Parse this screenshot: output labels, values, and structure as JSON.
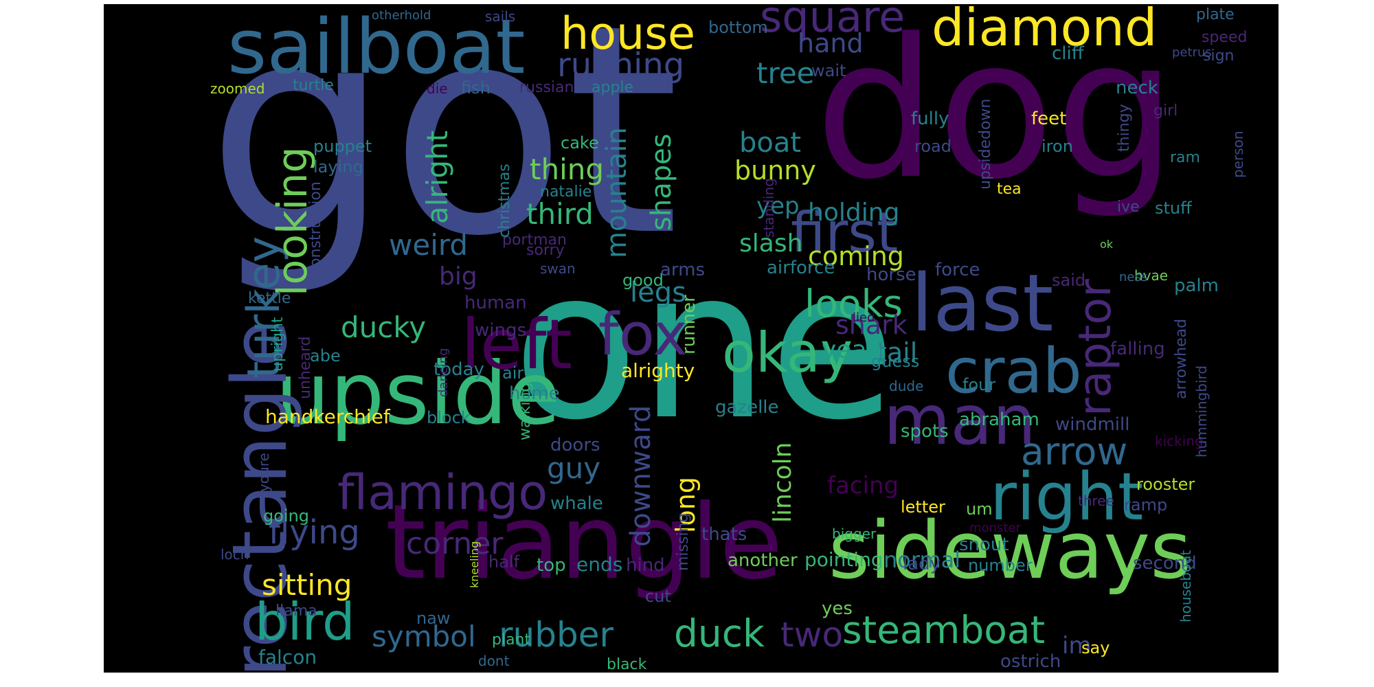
{
  "title": "Word cloud",
  "palette": {
    "background": "#000000",
    "colors": [
      "#440154",
      "#482878",
      "#3e4989",
      "#31688e",
      "#26828e",
      "#1f9e89",
      "#35b779",
      "#6ece58",
      "#b5de2b",
      "#fde725"
    ]
  },
  "words": [
    {
      "text": "got",
      "size": 9,
      "color": "#3e4989",
      "orientation": "horizontal"
    },
    {
      "text": "one",
      "size": 9,
      "color": "#1f9e89",
      "orientation": "horizontal"
    },
    {
      "text": "dog",
      "size": 8,
      "color": "#440154",
      "orientation": "horizontal"
    },
    {
      "text": "triangle",
      "size": 7,
      "color": "#440154",
      "orientation": "horizontal"
    },
    {
      "text": "sailboat",
      "size": 6,
      "color": "#31688e",
      "orientation": "horizontal"
    },
    {
      "text": "upside",
      "size": 6,
      "color": "#35b779",
      "orientation": "horizontal"
    },
    {
      "text": "sideways",
      "size": 6,
      "color": "#6ece58",
      "orientation": "horizontal"
    },
    {
      "text": "rectangle",
      "size": 6,
      "color": "#3e4989",
      "orientation": "vertical"
    },
    {
      "text": "last",
      "size": 6,
      "color": "#3e4989",
      "orientation": "horizontal"
    },
    {
      "text": "man",
      "size": 6,
      "color": "#482878",
      "orientation": "horizontal"
    },
    {
      "text": "right",
      "size": 5,
      "color": "#26828e",
      "orientation": "horizontal"
    },
    {
      "text": "left",
      "size": 5,
      "color": "#440154",
      "orientation": "horizontal"
    },
    {
      "text": "crab",
      "size": 5,
      "color": "#31688e",
      "orientation": "horizontal"
    },
    {
      "text": "fox",
      "size": 5,
      "color": "#482878",
      "orientation": "horizontal"
    },
    {
      "text": "okay",
      "size": 5,
      "color": "#35b779",
      "orientation": "horizontal"
    },
    {
      "text": "first",
      "size": 5,
      "color": "#3e4989",
      "orientation": "horizontal"
    },
    {
      "text": "diamond",
      "size": 5,
      "color": "#fde725",
      "orientation": "horizontal"
    },
    {
      "text": "square",
      "size": 4,
      "color": "#482878",
      "orientation": "horizontal"
    },
    {
      "text": "house",
      "size": 4,
      "color": "#fde725",
      "orientation": "horizontal"
    },
    {
      "text": "bird",
      "size": 4,
      "color": "#1f9e89",
      "orientation": "horizontal"
    },
    {
      "text": "flamingo",
      "size": 4,
      "color": "#482878",
      "orientation": "horizontal"
    },
    {
      "text": "raptor",
      "size": 4,
      "color": "#482878",
      "orientation": "vertical"
    },
    {
      "text": "turkey",
      "size": 4,
      "color": "#31688e",
      "orientation": "vertical"
    },
    {
      "text": "steamboat",
      "size": 4,
      "color": "#35b779",
      "orientation": "horizontal"
    },
    {
      "text": "duck",
      "size": 4,
      "color": "#35b779",
      "orientation": "horizontal"
    },
    {
      "text": "arrow",
      "size": 4,
      "color": "#31688e",
      "orientation": "horizontal"
    },
    {
      "text": "looks",
      "size": 4,
      "color": "#35b779",
      "orientation": "horizontal"
    },
    {
      "text": "rubber",
      "size": 4,
      "color": "#26828e",
      "orientation": "horizontal"
    },
    {
      "text": "looking",
      "size": 4,
      "color": "#6ece58",
      "orientation": "vertical"
    },
    {
      "text": "two",
      "size": 4,
      "color": "#482878",
      "orientation": "horizontal"
    },
    {
      "text": "running",
      "size": 3,
      "color": "#3e4989",
      "orientation": "horizontal"
    },
    {
      "text": "flying",
      "size": 3,
      "color": "#3e4989",
      "orientation": "horizontal"
    },
    {
      "text": "corner",
      "size": 3,
      "color": "#482878",
      "orientation": "horizontal"
    },
    {
      "text": "symbol",
      "size": 3,
      "color": "#31688e",
      "orientation": "horizontal"
    },
    {
      "text": "sitting",
      "size": 3,
      "color": "#fde725",
      "orientation": "horizontal"
    },
    {
      "text": "ducky",
      "size": 3,
      "color": "#35b779",
      "orientation": "horizontal"
    },
    {
      "text": "thing",
      "size": 3,
      "color": "#6ece58",
      "orientation": "horizontal"
    },
    {
      "text": "third",
      "size": 3,
      "color": "#35b779",
      "orientation": "horizontal"
    },
    {
      "text": "weird",
      "size": 3,
      "color": "#31688e",
      "orientation": "horizontal"
    },
    {
      "text": "alright",
      "size": 3,
      "color": "#35b779",
      "orientation": "vertical"
    },
    {
      "text": "guy",
      "size": 3,
      "color": "#31688e",
      "orientation": "horizontal"
    },
    {
      "text": "big",
      "size": 3,
      "color": "#482878",
      "orientation": "horizontal"
    },
    {
      "text": "legs",
      "size": 3,
      "color": "#26828e",
      "orientation": "horizontal"
    },
    {
      "text": "mountain",
      "size": 3,
      "color": "#26828e",
      "orientation": "vertical"
    },
    {
      "text": "shapes",
      "size": 3,
      "color": "#35b779",
      "orientation": "vertical"
    },
    {
      "text": "downward",
      "size": 3,
      "color": "#3e4989",
      "orientation": "vertical"
    },
    {
      "text": "long",
      "size": 3,
      "color": "#fde725",
      "orientation": "vertical"
    },
    {
      "text": "tree",
      "size": 3,
      "color": "#26828e",
      "orientation": "horizontal"
    },
    {
      "text": "hand",
      "size": 3,
      "color": "#3e4989",
      "orientation": "horizontal"
    },
    {
      "text": "boat",
      "size": 3,
      "color": "#26828e",
      "orientation": "horizontal"
    },
    {
      "text": "bunny",
      "size": 3,
      "color": "#b5de2b",
      "orientation": "horizontal"
    },
    {
      "text": "yep",
      "size": 3,
      "color": "#26828e",
      "orientation": "horizontal"
    },
    {
      "text": "slash",
      "size": 3,
      "color": "#35b779",
      "orientation": "horizontal"
    },
    {
      "text": "holding",
      "size": 3,
      "color": "#26828e",
      "orientation": "horizontal"
    },
    {
      "text": "coming",
      "size": 3,
      "color": "#b5de2b",
      "orientation": "horizontal"
    },
    {
      "text": "shark",
      "size": 3,
      "color": "#482878",
      "orientation": "horizontal"
    },
    {
      "text": "tail",
      "size": 3,
      "color": "#26828e",
      "orientation": "horizontal"
    },
    {
      "text": "yeah",
      "size": 3,
      "color": "#1f9e89",
      "orientation": "horizontal"
    },
    {
      "text": "lincoln",
      "size": 3,
      "color": "#6ece58",
      "orientation": "vertical"
    },
    {
      "text": "facing",
      "size": 3,
      "color": "#440154",
      "orientation": "horizontal"
    },
    {
      "text": "normal",
      "size": 3,
      "color": "#26828e",
      "orientation": "horizontal"
    },
    {
      "text": "im",
      "size": 3,
      "color": "#3e4989",
      "orientation": "horizontal"
    },
    {
      "text": "handkerchief",
      "size": 2,
      "color": "#fde725",
      "orientation": "horizontal"
    },
    {
      "text": "block",
      "size": 2,
      "color": "#26828e",
      "orientation": "horizontal"
    },
    {
      "text": "falcon",
      "size": 2,
      "color": "#26828e",
      "orientation": "horizontal"
    },
    {
      "text": "llama",
      "size": 2,
      "color": "#3e4989",
      "orientation": "horizontal"
    },
    {
      "text": "going",
      "size": 2,
      "color": "#35b779",
      "orientation": "horizontal"
    },
    {
      "text": "kettle",
      "size": 2,
      "color": "#31688e",
      "orientation": "horizontal"
    },
    {
      "text": "abe",
      "size": 2,
      "color": "#26828e",
      "orientation": "horizontal"
    },
    {
      "text": "puppet",
      "size": 2,
      "color": "#26828e",
      "orientation": "horizontal"
    },
    {
      "text": "laying",
      "size": 2,
      "color": "#31688e",
      "orientation": "horizontal"
    },
    {
      "text": "turtle",
      "size": 2,
      "color": "#26828e",
      "orientation": "horizontal"
    },
    {
      "text": "zoomed",
      "size": 2,
      "color": "#b5de2b",
      "orientation": "horizontal"
    },
    {
      "text": "loch",
      "size": 2,
      "color": "#3e4989",
      "orientation": "horizontal"
    },
    {
      "text": "naw",
      "size": 2,
      "color": "#31688e",
      "orientation": "horizontal"
    },
    {
      "text": "top",
      "size": 2,
      "color": "#35b779",
      "orientation": "horizontal"
    },
    {
      "text": "half",
      "size": 2,
      "color": "#482878",
      "orientation": "horizontal"
    },
    {
      "text": "ends",
      "size": 2,
      "color": "#26828e",
      "orientation": "horizontal"
    },
    {
      "text": "hind",
      "size": 2,
      "color": "#482878",
      "orientation": "horizontal"
    },
    {
      "text": "cut",
      "size": 2,
      "color": "#3e4989",
      "orientation": "horizontal"
    },
    {
      "text": "home",
      "size": 2,
      "color": "#26828e",
      "orientation": "horizontal"
    },
    {
      "text": "air",
      "size": 2,
      "color": "#26828e",
      "orientation": "horizontal"
    },
    {
      "text": "today",
      "size": 2,
      "color": "#26828e",
      "orientation": "horizontal"
    },
    {
      "text": "human",
      "size": 2,
      "color": "#482878",
      "orientation": "horizontal"
    },
    {
      "text": "wings",
      "size": 2,
      "color": "#482878",
      "orientation": "horizontal"
    },
    {
      "text": "doors",
      "size": 2,
      "color": "#3e4989",
      "orientation": "horizontal"
    },
    {
      "text": "whale",
      "size": 2,
      "color": "#26828e",
      "orientation": "horizontal"
    },
    {
      "text": "fish",
      "size": 2,
      "color": "#31688e",
      "orientation": "horizontal"
    },
    {
      "text": "cake",
      "size": 2,
      "color": "#35b779",
      "orientation": "horizontal"
    },
    {
      "text": "natalie",
      "size": 2,
      "color": "#26828e",
      "orientation": "horizontal"
    },
    {
      "text": "portman",
      "size": 2,
      "color": "#482878",
      "orientation": "horizontal"
    },
    {
      "text": "sorry",
      "size": 2,
      "color": "#482878",
      "orientation": "horizontal"
    },
    {
      "text": "swan",
      "size": 2,
      "color": "#3e4989",
      "orientation": "horizontal"
    },
    {
      "text": "good",
      "size": 2,
      "color": "#35b779",
      "orientation": "horizontal"
    },
    {
      "text": "arms",
      "size": 2,
      "color": "#3e4989",
      "orientation": "horizontal"
    },
    {
      "text": "russian",
      "size": 2,
      "color": "#482878",
      "orientation": "horizontal"
    },
    {
      "text": "apple",
      "size": 2,
      "color": "#26828e",
      "orientation": "horizontal"
    },
    {
      "text": "die",
      "size": 2,
      "color": "#440154",
      "orientation": "horizontal"
    },
    {
      "text": "bottom",
      "size": 2,
      "color": "#31688e",
      "orientation": "horizontal"
    },
    {
      "text": "wait",
      "size": 2,
      "color": "#3e4989",
      "orientation": "horizontal"
    },
    {
      "text": "sails",
      "size": 2,
      "color": "#3e4989",
      "orientation": "horizontal"
    },
    {
      "text": "otherhold",
      "size": 2,
      "color": "#31688e",
      "orientation": "horizontal"
    },
    {
      "text": "alrighty",
      "size": 2,
      "color": "#fde725",
      "orientation": "horizontal"
    },
    {
      "text": "gazelle",
      "size": 2,
      "color": "#26828e",
      "orientation": "horizontal"
    },
    {
      "text": "runner",
      "size": 2,
      "color": "#6ece58",
      "orientation": "vertical"
    },
    {
      "text": "walking",
      "size": 2,
      "color": "#35b779",
      "orientation": "vertical"
    },
    {
      "text": "dancing",
      "size": 2,
      "color": "#482878",
      "orientation": "vertical"
    },
    {
      "text": "missing",
      "size": 2,
      "color": "#3e4989",
      "orientation": "vertical"
    },
    {
      "text": "thats",
      "size": 2,
      "color": "#3e4989",
      "orientation": "horizontal"
    },
    {
      "text": "another",
      "size": 2,
      "color": "#6ece58",
      "orientation": "horizontal"
    },
    {
      "text": "pointing",
      "size": 2,
      "color": "#35b779",
      "orientation": "horizontal"
    },
    {
      "text": "lady",
      "size": 2,
      "color": "#3e4989",
      "orientation": "horizontal"
    },
    {
      "text": "yes",
      "size": 2,
      "color": "#6ece58",
      "orientation": "horizontal"
    },
    {
      "text": "black",
      "size": 2,
      "color": "#35b779",
      "orientation": "horizontal"
    },
    {
      "text": "dont",
      "size": 2,
      "color": "#31688e",
      "orientation": "horizontal"
    },
    {
      "text": "plant",
      "size": 2,
      "color": "#35b779",
      "orientation": "horizontal"
    },
    {
      "text": "kneeling",
      "size": 2,
      "color": "#b5de2b",
      "orientation": "vertical"
    },
    {
      "text": "christmas",
      "size": 2,
      "color": "#26828e",
      "orientation": "vertical"
    },
    {
      "text": "construction",
      "size": 2,
      "color": "#3e4989",
      "orientation": "vertical"
    },
    {
      "text": "standing",
      "size": 2,
      "color": "#482878",
      "orientation": "vertical"
    },
    {
      "text": "upright",
      "size": 2,
      "color": "#1f9e89",
      "orientation": "vertical"
    },
    {
      "text": "unheard",
      "size": 2,
      "color": "#482878",
      "orientation": "vertical"
    },
    {
      "text": "youre",
      "size": 2,
      "color": "#3e4989",
      "orientation": "vertical"
    },
    {
      "text": "airforce",
      "size": 2,
      "color": "#26828e",
      "orientation": "horizontal"
    },
    {
      "text": "horse",
      "size": 2,
      "color": "#3e4989",
      "orientation": "horizontal"
    },
    {
      "text": "force",
      "size": 2,
      "color": "#3e4989",
      "orientation": "horizontal"
    },
    {
      "text": "guess",
      "size": 2,
      "color": "#26828e",
      "orientation": "horizontal"
    },
    {
      "text": "dude",
      "size": 2,
      "color": "#31688e",
      "orientation": "horizontal"
    },
    {
      "text": "four",
      "size": 2,
      "color": "#26828e",
      "orientation": "horizontal"
    },
    {
      "text": "spots",
      "size": 2,
      "color": "#35b779",
      "orientation": "horizontal"
    },
    {
      "text": "abraham",
      "size": 2,
      "color": "#35b779",
      "orientation": "horizontal"
    },
    {
      "text": "windmill",
      "size": 2,
      "color": "#3e4989",
      "orientation": "horizontal"
    },
    {
      "text": "um",
      "size": 2,
      "color": "#6ece58",
      "orientation": "horizontal"
    },
    {
      "text": "letter",
      "size": 2,
      "color": "#fde725",
      "orientation": "horizontal"
    },
    {
      "text": "monster",
      "size": 2,
      "color": "#440154",
      "orientation": "horizontal"
    },
    {
      "text": "bigger",
      "size": 2,
      "color": "#35b779",
      "orientation": "horizontal"
    },
    {
      "text": "snout",
      "size": 2,
      "color": "#26828e",
      "orientation": "horizontal"
    },
    {
      "text": "number",
      "size": 2,
      "color": "#26828e",
      "orientation": "horizontal"
    },
    {
      "text": "ostrich",
      "size": 2,
      "color": "#3e4989",
      "orientation": "horizontal"
    },
    {
      "text": "say",
      "size": 2,
      "color": "#fde725",
      "orientation": "horizontal"
    },
    {
      "text": "second",
      "size": 2,
      "color": "#3e4989",
      "orientation": "horizontal"
    },
    {
      "text": "rooster",
      "size": 2,
      "color": "#b5de2b",
      "orientation": "horizontal"
    },
    {
      "text": "ramp",
      "size": 2,
      "color": "#3e4989",
      "orientation": "horizontal"
    },
    {
      "text": "three",
      "size": 2,
      "color": "#482878",
      "orientation": "horizontal"
    },
    {
      "text": "kicking",
      "size": 2,
      "color": "#440154",
      "orientation": "horizontal"
    },
    {
      "text": "houseboat",
      "size": 2,
      "color": "#26828e",
      "orientation": "vertical"
    },
    {
      "text": "hummingbird",
      "size": 2,
      "color": "#3e4989",
      "orientation": "vertical"
    },
    {
      "text": "arrowhead",
      "size": 2,
      "color": "#3e4989",
      "orientation": "vertical"
    },
    {
      "text": "falling",
      "size": 2,
      "color": "#482878",
      "orientation": "horizontal"
    },
    {
      "text": "palm",
      "size": 2,
      "color": "#26828e",
      "orientation": "horizontal"
    },
    {
      "text": "hvae",
      "size": 2,
      "color": "#6ece58",
      "orientation": "horizontal"
    },
    {
      "text": "ness",
      "size": 2,
      "color": "#31688e",
      "orientation": "horizontal"
    },
    {
      "text": "said",
      "size": 2,
      "color": "#482878",
      "orientation": "horizontal"
    },
    {
      "text": "lied",
      "size": 2,
      "color": "#440154",
      "orientation": "horizontal"
    },
    {
      "text": "cliff",
      "size": 2,
      "color": "#26828e",
      "orientation": "horizontal"
    },
    {
      "text": "neck",
      "size": 2,
      "color": "#26828e",
      "orientation": "horizontal"
    },
    {
      "text": "feet",
      "size": 2,
      "color": "#fde725",
      "orientation": "horizontal"
    },
    {
      "text": "fully",
      "size": 2,
      "color": "#26828e",
      "orientation": "horizontal"
    },
    {
      "text": "road",
      "size": 2,
      "color": "#3e4989",
      "orientation": "horizontal"
    },
    {
      "text": "iron",
      "size": 2,
      "color": "#26828e",
      "orientation": "horizontal"
    },
    {
      "text": "tea",
      "size": 2,
      "color": "#fde725",
      "orientation": "horizontal"
    },
    {
      "text": "ok",
      "size": 2,
      "color": "#6ece58",
      "orientation": "horizontal"
    },
    {
      "text": "upsidedown",
      "size": 2,
      "color": "#3e4989",
      "orientation": "vertical"
    },
    {
      "text": "thingy",
      "size": 2,
      "color": "#3e4989",
      "orientation": "vertical"
    },
    {
      "text": "girl",
      "size": 2,
      "color": "#482878",
      "orientation": "horizontal"
    },
    {
      "text": "person",
      "size": 2,
      "color": "#3e4989",
      "orientation": "vertical"
    },
    {
      "text": "ram",
      "size": 2,
      "color": "#26828e",
      "orientation": "horizontal"
    },
    {
      "text": "stuff",
      "size": 2,
      "color": "#26828e",
      "orientation": "horizontal"
    },
    {
      "text": "ive",
      "size": 2,
      "color": "#3e4989",
      "orientation": "horizontal"
    },
    {
      "text": "plate",
      "size": 2,
      "color": "#31688e",
      "orientation": "horizontal"
    },
    {
      "text": "speed",
      "size": 2,
      "color": "#482878",
      "orientation": "horizontal"
    },
    {
      "text": "sign",
      "size": 2,
      "color": "#3e4989",
      "orientation": "horizontal"
    },
    {
      "text": "petrus",
      "size": 2,
      "color": "#3e4989",
      "orientation": "horizontal"
    }
  ]
}
